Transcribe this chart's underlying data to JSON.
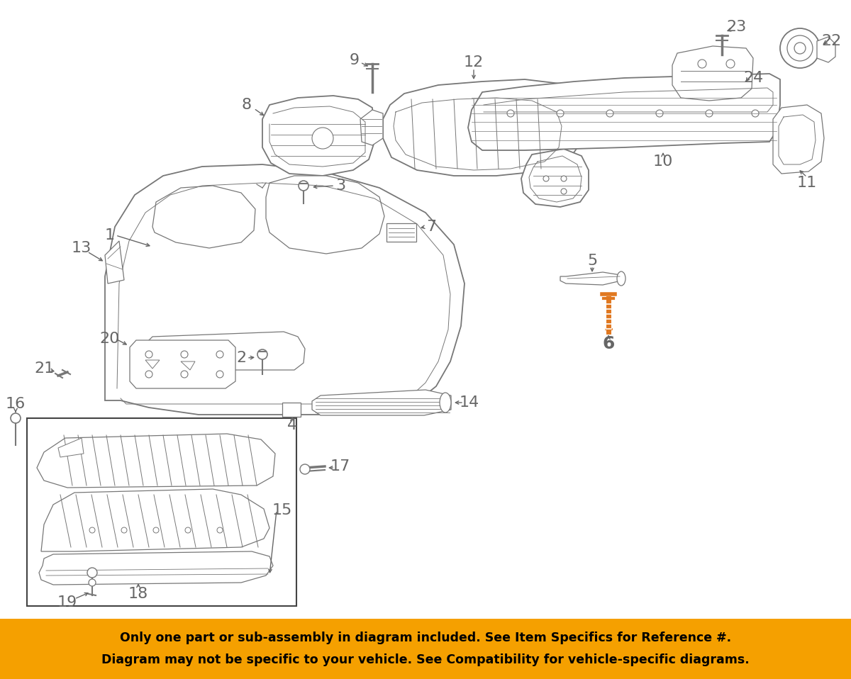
{
  "background_color": "#ffffff",
  "orange_banner_color": "#F5A000",
  "banner_text_line1": "Only one part or sub-assembly in diagram included. See Item Specifics for Reference #.",
  "banner_text_line2": "Diagram may not be specific to your vehicle. See Compatibility for vehicle-specific diagrams.",
  "banner_text_color": "#000000",
  "banner_font_size": 12.5,
  "label_color": "#666666",
  "label_font_size": 16,
  "highlight_color": "#E07820",
  "line_color": "#888888",
  "part_line_color": "#777777",
  "thin_lw": 0.9,
  "medium_lw": 1.3,
  "thick_lw": 2.0
}
